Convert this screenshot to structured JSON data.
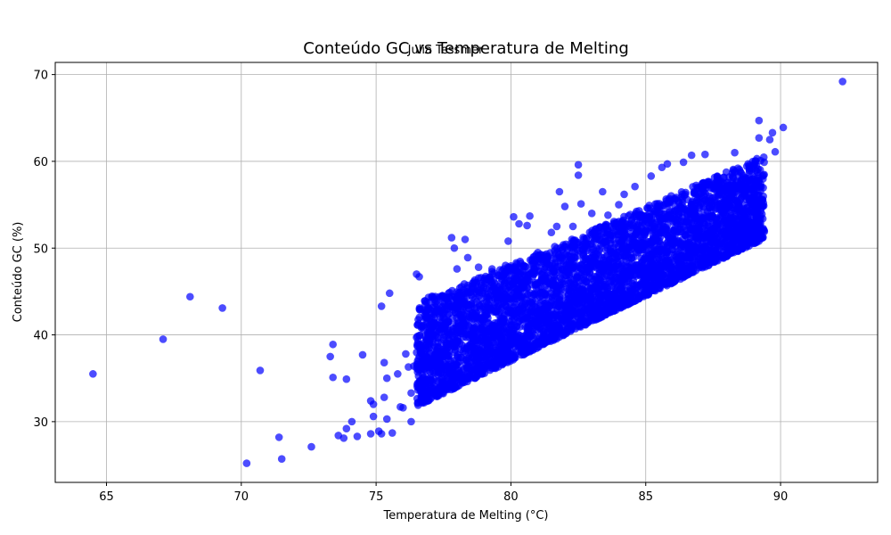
{
  "chart_data": {
    "type": "scatter",
    "title": "Conteúdo GC vs Temperatura de Melting",
    "subtitle": "Julia Tessmer",
    "xlabel": "Temperatura de Melting (°C)",
    "ylabel": "Conteúdo GC (%)",
    "xlim": [
      63.1,
      93.6
    ],
    "ylim": [
      23.0,
      71.4
    ],
    "xticks": [
      65,
      70,
      75,
      80,
      85,
      90
    ],
    "yticks": [
      30,
      40,
      50,
      60,
      70
    ],
    "grid": true,
    "legend": "none",
    "marker_color": "#0000ff",
    "marker_opacity": 0.7,
    "points": [
      [
        64.5,
        35.5
      ],
      [
        67.1,
        39.5
      ],
      [
        68.1,
        44.4
      ],
      [
        69.3,
        43.1
      ],
      [
        70.7,
        35.9
      ],
      [
        70.2,
        25.2
      ],
      [
        71.5,
        25.7
      ],
      [
        71.4,
        28.2
      ],
      [
        72.6,
        27.1
      ],
      [
        73.3,
        37.5
      ],
      [
        73.4,
        38.9
      ],
      [
        73.4,
        35.1
      ],
      [
        73.6,
        28.4
      ],
      [
        73.8,
        28.1
      ],
      [
        73.9,
        29.2
      ],
      [
        73.9,
        34.9
      ],
      [
        74.1,
        30.0
      ],
      [
        74.3,
        28.3
      ],
      [
        74.5,
        37.7
      ],
      [
        74.8,
        28.6
      ],
      [
        74.8,
        32.4
      ],
      [
        74.9,
        30.6
      ],
      [
        74.9,
        32.0
      ],
      [
        75.1,
        28.9
      ],
      [
        75.2,
        28.6
      ],
      [
        75.2,
        43.3
      ],
      [
        75.3,
        36.8
      ],
      [
        75.3,
        32.8
      ],
      [
        75.4,
        30.3
      ],
      [
        75.4,
        35.0
      ],
      [
        75.5,
        44.8
      ],
      [
        75.6,
        28.7
      ],
      [
        75.8,
        35.5
      ],
      [
        75.9,
        31.7
      ],
      [
        76.0,
        31.6
      ],
      [
        76.1,
        37.8
      ],
      [
        76.2,
        36.3
      ],
      [
        76.3,
        30.0
      ],
      [
        76.3,
        33.3
      ],
      [
        76.4,
        36.4
      ],
      [
        76.5,
        39.7
      ],
      [
        76.5,
        47.0
      ],
      [
        76.6,
        46.7
      ],
      [
        76.6,
        34.5
      ],
      [
        76.7,
        41.0
      ],
      [
        76.9,
        42.1
      ],
      [
        77.0,
        39.4
      ],
      [
        77.2,
        36.4
      ],
      [
        77.4,
        38.0
      ],
      [
        77.6,
        41.3
      ],
      [
        77.7,
        39.4
      ],
      [
        77.8,
        43.2
      ],
      [
        77.8,
        51.2
      ],
      [
        77.9,
        50.0
      ],
      [
        78.0,
        47.6
      ],
      [
        78.0,
        37.5
      ],
      [
        78.3,
        51.0
      ],
      [
        78.4,
        48.9
      ],
      [
        78.4,
        45.7
      ],
      [
        78.5,
        44.9
      ],
      [
        78.7,
        42.3
      ],
      [
        78.8,
        47.8
      ],
      [
        78.9,
        40.2
      ],
      [
        79.0,
        45.5
      ],
      [
        79.1,
        43.8
      ],
      [
        79.3,
        47.6
      ],
      [
        79.3,
        47.3
      ],
      [
        79.4,
        44.2
      ],
      [
        79.6,
        47.5
      ],
      [
        79.8,
        48.0
      ],
      [
        79.9,
        50.8
      ],
      [
        80.1,
        53.6
      ],
      [
        80.2,
        48.3
      ],
      [
        80.3,
        52.8
      ],
      [
        80.6,
        52.6
      ],
      [
        80.7,
        53.7
      ],
      [
        81.0,
        49.5
      ],
      [
        81.3,
        49.0
      ],
      [
        81.5,
        51.8
      ],
      [
        81.7,
        52.5
      ],
      [
        81.8,
        56.5
      ],
      [
        82.0,
        54.8
      ],
      [
        82.3,
        52.5
      ],
      [
        82.5,
        59.6
      ],
      [
        82.5,
        58.4
      ],
      [
        82.6,
        55.1
      ],
      [
        83.0,
        54.0
      ],
      [
        83.4,
        56.5
      ],
      [
        83.6,
        53.8
      ],
      [
        84.0,
        55.0
      ],
      [
        84.2,
        56.2
      ],
      [
        84.6,
        57.1
      ],
      [
        85.2,
        58.3
      ],
      [
        85.6,
        59.3
      ],
      [
        85.8,
        59.7
      ],
      [
        86.4,
        59.9
      ],
      [
        86.7,
        60.7
      ],
      [
        87.2,
        60.8
      ],
      [
        88.3,
        61.0
      ],
      [
        89.2,
        62.7
      ],
      [
        89.2,
        64.7
      ],
      [
        89.6,
        62.5
      ],
      [
        89.7,
        63.3
      ],
      [
        89.8,
        61.1
      ],
      [
        90.1,
        63.9
      ],
      [
        92.3,
        69.2
      ]
    ]
  }
}
